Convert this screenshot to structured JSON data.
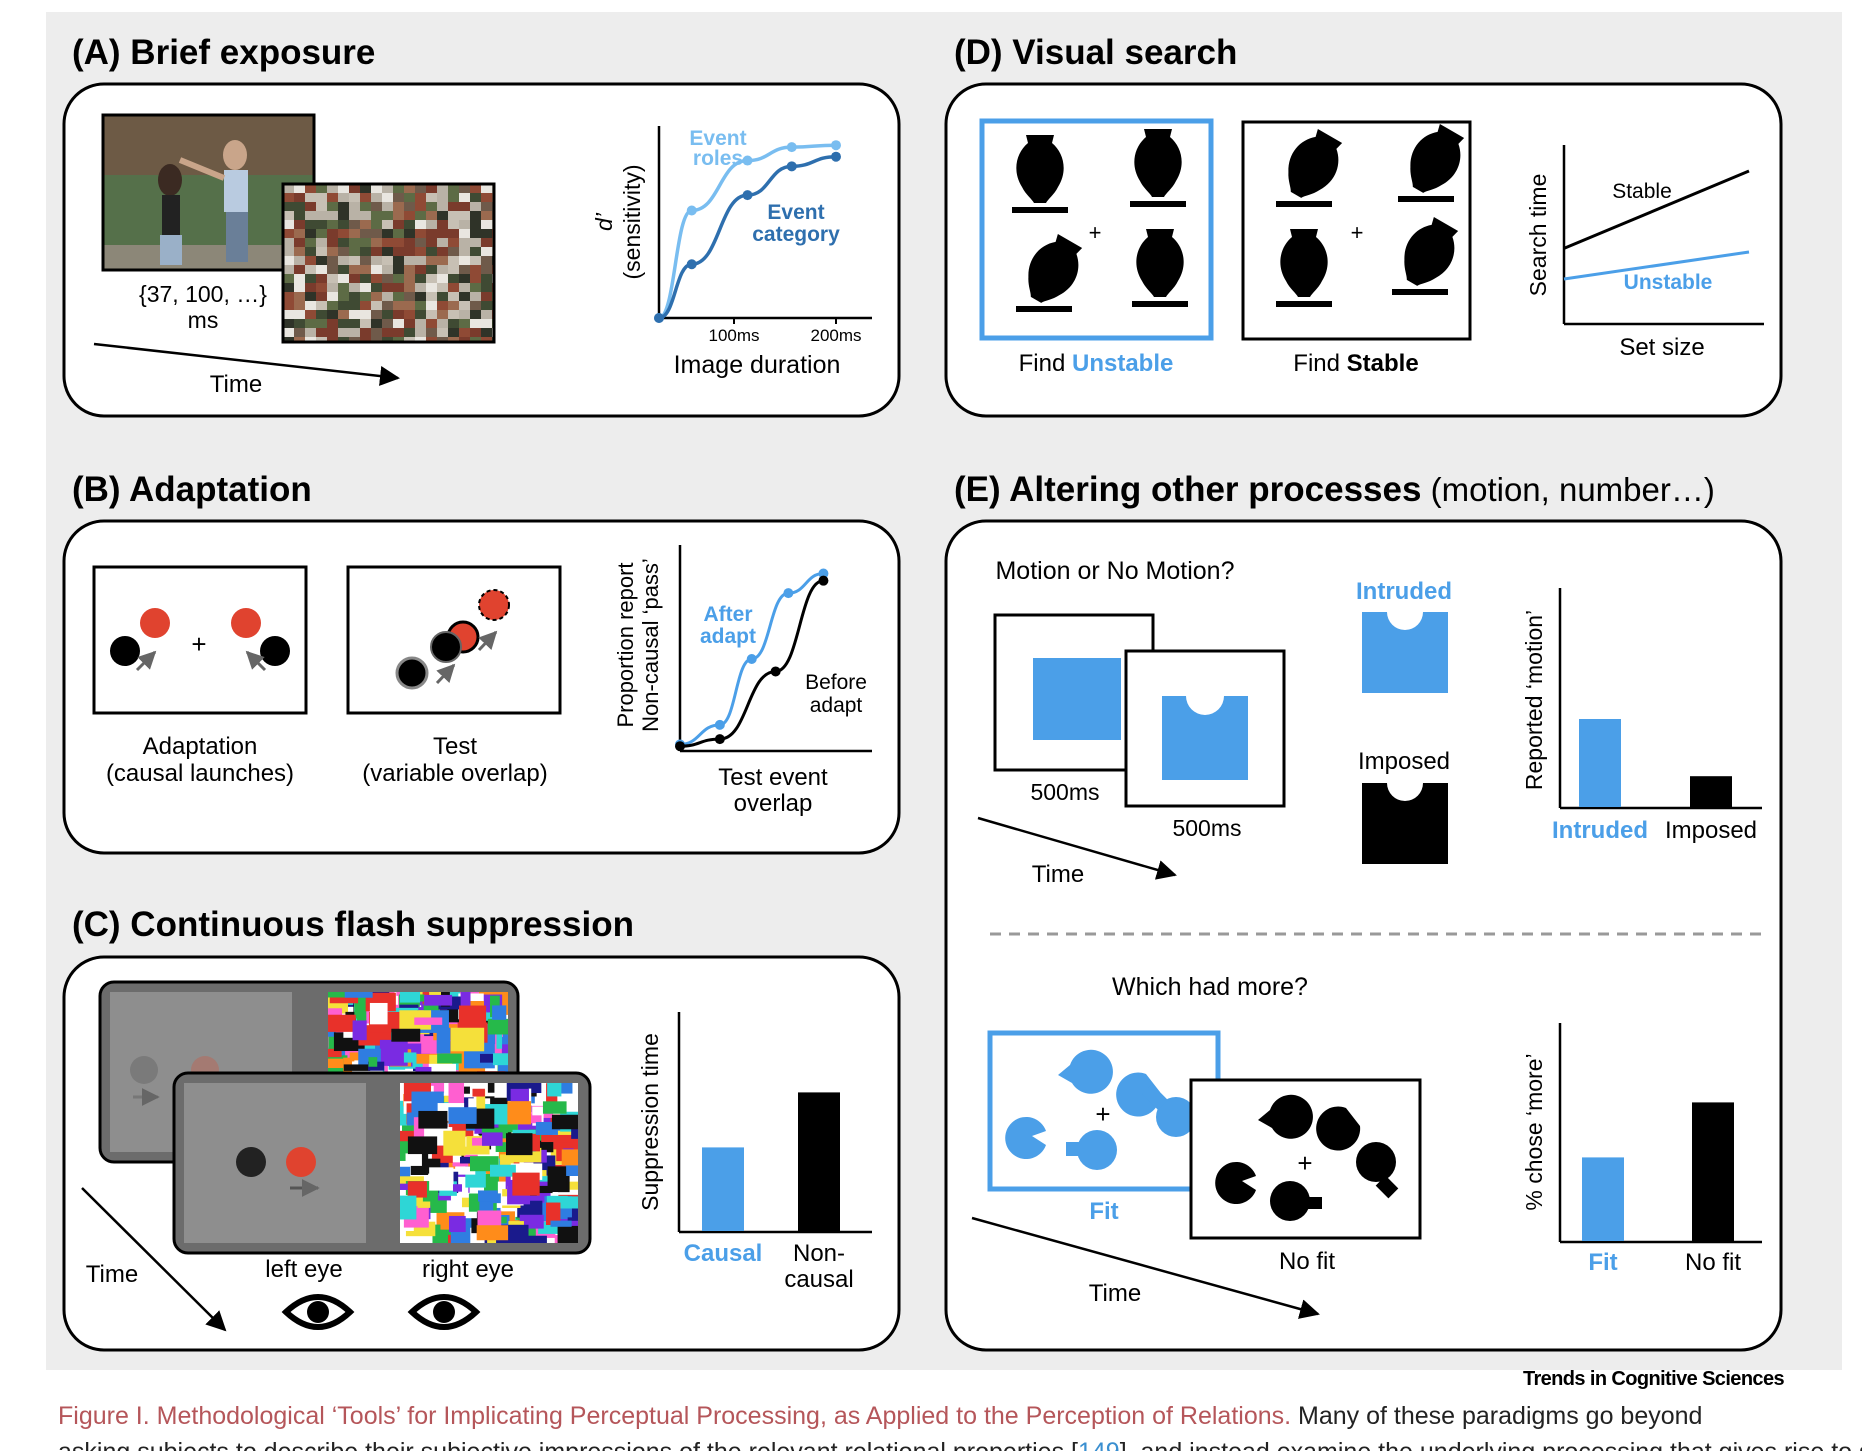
{
  "colors": {
    "blue": "#4b9fe8",
    "dark_blue": "#2e6fae",
    "light_blue": "#79bdf0",
    "red": "#e0432f",
    "black": "#000000"
  },
  "panel_a": {
    "title": "(A) Brief exposure",
    "durations": "{37, 100, …}",
    "ms": "ms",
    "time": "Time",
    "chart": {
      "ylabel_line1": "d’",
      "ylabel_line2": "(sensitivity)",
      "xlabel": "Image duration",
      "tick_100": "100ms",
      "tick_200": "200ms",
      "label_roles_1": "Event",
      "label_roles_2": "roles",
      "label_cat_1": "Event",
      "label_cat_2": "category"
    }
  },
  "panel_b": {
    "title": "(B) Adaptation",
    "adapt_caption_1": "Adaptation",
    "adapt_caption_2": "(causal launches)",
    "test_caption_1": "Test",
    "test_caption_2": "(variable overlap)",
    "chart": {
      "ylabel_line1": "Proportion report",
      "ylabel_line2": "Non-causal ‘pass’",
      "xlabel_1": "Test event",
      "xlabel_2": "overlap",
      "after_1": "After",
      "after_2": "adapt",
      "before_1": "Before",
      "before_2": "adapt"
    }
  },
  "panel_c": {
    "title": "(C) Continuous flash suppression",
    "time": "Time",
    "left_eye": "left eye",
    "right_eye": "right eye",
    "chart": {
      "ylabel": "Suppression time",
      "cat_causal": "Causal",
      "cat_noncausal_1": "Non-",
      "cat_noncausal_2": "causal"
    }
  },
  "panel_d": {
    "title": "(D) Visual search",
    "find_unstable_prefix": "Find ",
    "find_unstable_word": "Unstable",
    "find_stable_prefix": "Find ",
    "find_stable_word": "Stable",
    "chart": {
      "ylabel": "Search time",
      "xlabel": "Set size",
      "stable": "Stable",
      "unstable": "Unstable"
    }
  },
  "panel_e": {
    "title_bold": "(E) Altering other processes",
    "title_rest": " (motion, number…)",
    "motion_question": "Motion or No Motion?",
    "ms_1": "500ms",
    "ms_2": "500ms",
    "time_1": "Time",
    "intruded_label": "Intruded",
    "imposed_label": "Imposed",
    "motion_chart": {
      "ylabel": "Reported ‘motion’",
      "cat_intruded": "Intruded",
      "cat_imposed": "Imposed"
    },
    "number_question": "Which had more?",
    "fit": "Fit",
    "no_fit": "No fit",
    "time_2": "Time",
    "number_chart": {
      "ylabel": "% chose ‘more’",
      "cat_fit": "Fit",
      "cat_nofit": "No fit"
    }
  },
  "journal": "Trends in Cognitive Sciences",
  "caption": {
    "figure_title": "Figure I. Methodological ‘Tools’ for Implicating Perceptual Processing, as Applied to the Perception of Relations.",
    "text_1": " Many of these paradigms go beyond",
    "text_2": "asking subjects to describe their subjective impressions of the relevant relational properties [",
    "ref": "149",
    "text_3": "], and instead examine the underlying processing that gives rise to such"
  },
  "chart_data": [
    {
      "type": "line",
      "panel": "A",
      "xlabel": "Image duration",
      "ylabel": "d’ (sensitivity)",
      "x_ticks": [
        "100ms",
        "200ms"
      ],
      "series": [
        {
          "name": "Event roles",
          "x": [
            0,
            37,
            100,
            150,
            200
          ],
          "y": [
            0.0,
            0.56,
            0.82,
            0.89,
            0.9
          ]
        },
        {
          "name": "Event category",
          "x": [
            0,
            37,
            100,
            150,
            200
          ],
          "y": [
            0.0,
            0.28,
            0.64,
            0.79,
            0.84
          ]
        }
      ]
    },
    {
      "type": "line",
      "panel": "B",
      "xlabel": "Test event overlap",
      "ylabel": "Proportion report Non-causal ‘pass’",
      "series": [
        {
          "name": "After adapt",
          "x": [
            0.0,
            0.25,
            0.45,
            0.68,
            0.9
          ],
          "y": [
            0.02,
            0.13,
            0.5,
            0.87,
            0.98
          ]
        },
        {
          "name": "Before adapt",
          "x": [
            0.0,
            0.25,
            0.6,
            0.9
          ],
          "y": [
            0.01,
            0.05,
            0.43,
            0.94
          ]
        }
      ]
    },
    {
      "type": "bar",
      "panel": "C",
      "ylabel": "Suppression time",
      "categories": [
        "Causal",
        "Non-causal"
      ],
      "values": [
        0.38,
        0.63
      ]
    },
    {
      "type": "line",
      "panel": "D",
      "xlabel": "Set size",
      "ylabel": "Search time",
      "series": [
        {
          "name": "Stable",
          "x": [
            0,
            1
          ],
          "y": [
            0.42,
            0.85
          ]
        },
        {
          "name": "Unstable",
          "x": [
            0,
            1
          ],
          "y": [
            0.25,
            0.4
          ]
        }
      ]
    },
    {
      "type": "bar",
      "panel": "E-motion",
      "ylabel": "Reported ‘motion’",
      "categories": [
        "Intruded",
        "Imposed"
      ],
      "values": [
        0.4,
        0.14
      ]
    },
    {
      "type": "bar",
      "panel": "E-number",
      "ylabel": "% chose ‘more’",
      "categories": [
        "Fit",
        "No fit"
      ],
      "values": [
        0.38,
        0.63
      ]
    }
  ]
}
